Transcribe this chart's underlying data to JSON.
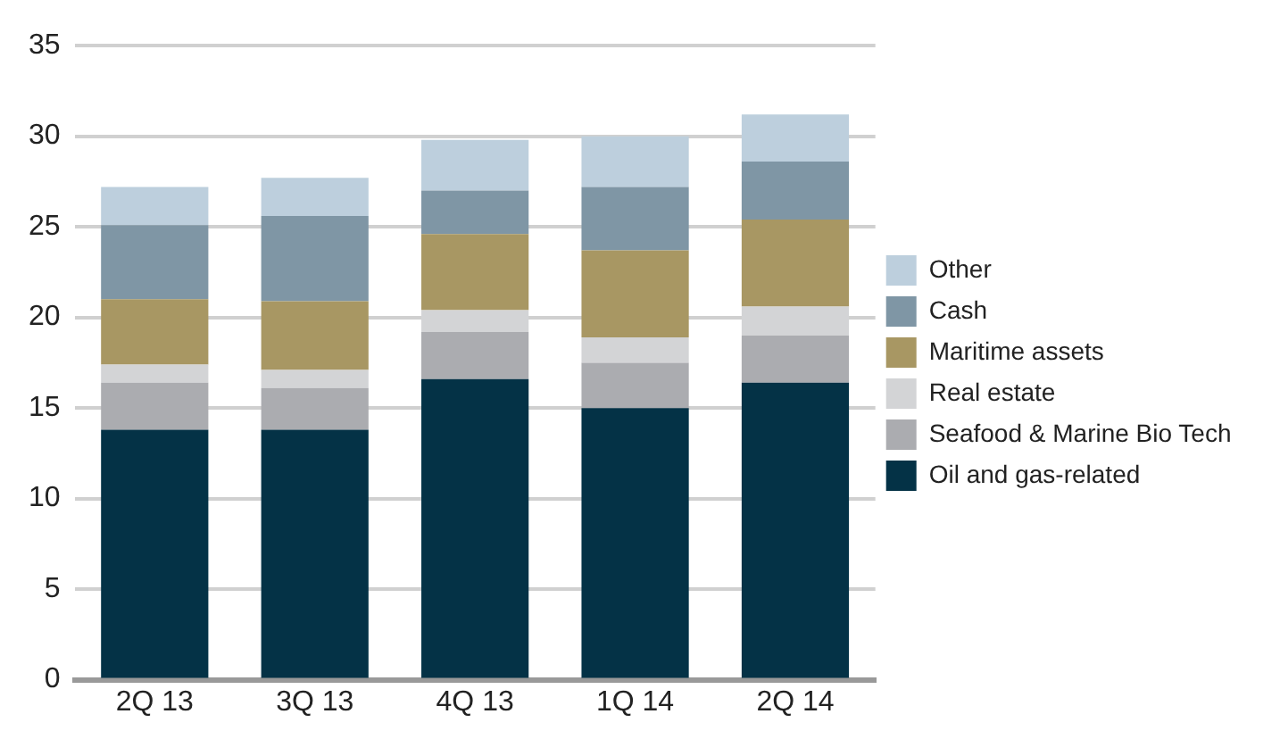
{
  "chart_data": {
    "type": "bar",
    "stacked": true,
    "categories": [
      "2Q 13",
      "3Q 13",
      "4Q 13",
      "1Q 14",
      "2Q 14"
    ],
    "series": [
      {
        "name": "Oil and gas-related",
        "color": "#043246",
        "values": [
          13.8,
          13.8,
          16.6,
          15.0,
          16.4
        ]
      },
      {
        "name": "Seafood & Marine Bio Tech",
        "color": "#abacb0",
        "values": [
          2.6,
          2.3,
          2.6,
          2.5,
          2.6
        ]
      },
      {
        "name": "Real estate",
        "color": "#d3d4d6",
        "values": [
          1.0,
          1.0,
          1.2,
          1.4,
          1.6
        ]
      },
      {
        "name": "Maritime assets",
        "color": "#a89763",
        "values": [
          3.6,
          3.8,
          4.2,
          4.8,
          4.8
        ]
      },
      {
        "name": "Cash",
        "color": "#7f96a5",
        "values": [
          4.1,
          4.7,
          2.4,
          3.5,
          3.2
        ]
      },
      {
        "name": "Other",
        "color": "#bdcfdd",
        "values": [
          2.1,
          2.1,
          2.8,
          2.8,
          2.6
        ]
      }
    ],
    "ylim": [
      0,
      35
    ],
    "yticks": [
      0,
      5,
      10,
      15,
      20,
      25,
      30,
      35
    ],
    "grid": "y",
    "legend": "right"
  }
}
